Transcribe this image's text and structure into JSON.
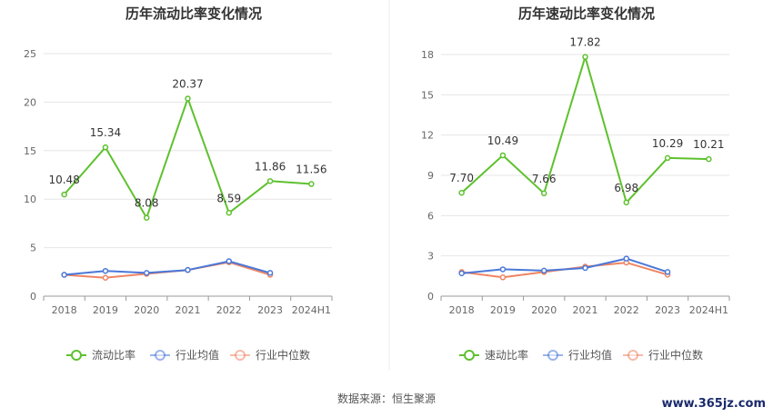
{
  "source": "数据来源：恒生聚源",
  "watermark": "www.365jz.com",
  "colors": {
    "main": "#5ec12e",
    "avg": "#4a78d8",
    "median": "#ef8463",
    "grid": "#e6e6e6",
    "axis": "#999999"
  },
  "chart_data": [
    {
      "type": "line",
      "title": "历年流动比率变化情况",
      "categories": [
        "2018",
        "2019",
        "2020",
        "2021",
        "2022",
        "2023",
        "2024H1"
      ],
      "ylim": [
        0,
        25
      ],
      "yticks": [
        "0",
        "5",
        "10",
        "15",
        "20",
        "25"
      ],
      "ytick_values": [
        0,
        5,
        10,
        15,
        20,
        25
      ],
      "legend": [
        "流动比率",
        "行业均值",
        "行业中位数"
      ],
      "legend_position": "bottom",
      "series": [
        {
          "name": "流动比率",
          "values": [
            10.48,
            15.34,
            8.08,
            20.37,
            8.59,
            11.86,
            11.56
          ],
          "labels": [
            "10.48",
            "15.34",
            "8.08",
            "20.37",
            "8.59",
            "11.86",
            "11.56"
          ]
        },
        {
          "name": "行业均值",
          "values": [
            2.2,
            2.6,
            2.4,
            2.7,
            3.6,
            2.4,
            null
          ]
        },
        {
          "name": "行业中位数",
          "values": [
            2.2,
            1.9,
            2.3,
            2.7,
            3.5,
            2.2,
            null
          ]
        }
      ]
    },
    {
      "type": "line",
      "title": "历年速动比率变化情况",
      "categories": [
        "2018",
        "2019",
        "2020",
        "2021",
        "2022",
        "2023",
        "2024H1"
      ],
      "ylim": [
        0,
        18
      ],
      "yticks": [
        "0",
        "3",
        "6",
        "9",
        "12",
        "15",
        "18"
      ],
      "ytick_values": [
        0,
        3,
        6,
        9,
        12,
        15,
        18
      ],
      "legend": [
        "速动比率",
        "行业均值",
        "行业中位数"
      ],
      "legend_position": "bottom",
      "series": [
        {
          "name": "速动比率",
          "values": [
            7.7,
            10.49,
            7.66,
            17.82,
            6.98,
            10.29,
            10.21
          ],
          "labels": [
            "7.70",
            "10.49",
            "7.66",
            "17.82",
            "6.98",
            "10.29",
            "10.21"
          ]
        },
        {
          "name": "行业均值",
          "values": [
            1.7,
            2.0,
            1.9,
            2.1,
            2.8,
            1.8,
            null
          ]
        },
        {
          "name": "行业中位数",
          "values": [
            1.8,
            1.4,
            1.8,
            2.2,
            2.5,
            1.6,
            null
          ]
        }
      ]
    }
  ]
}
